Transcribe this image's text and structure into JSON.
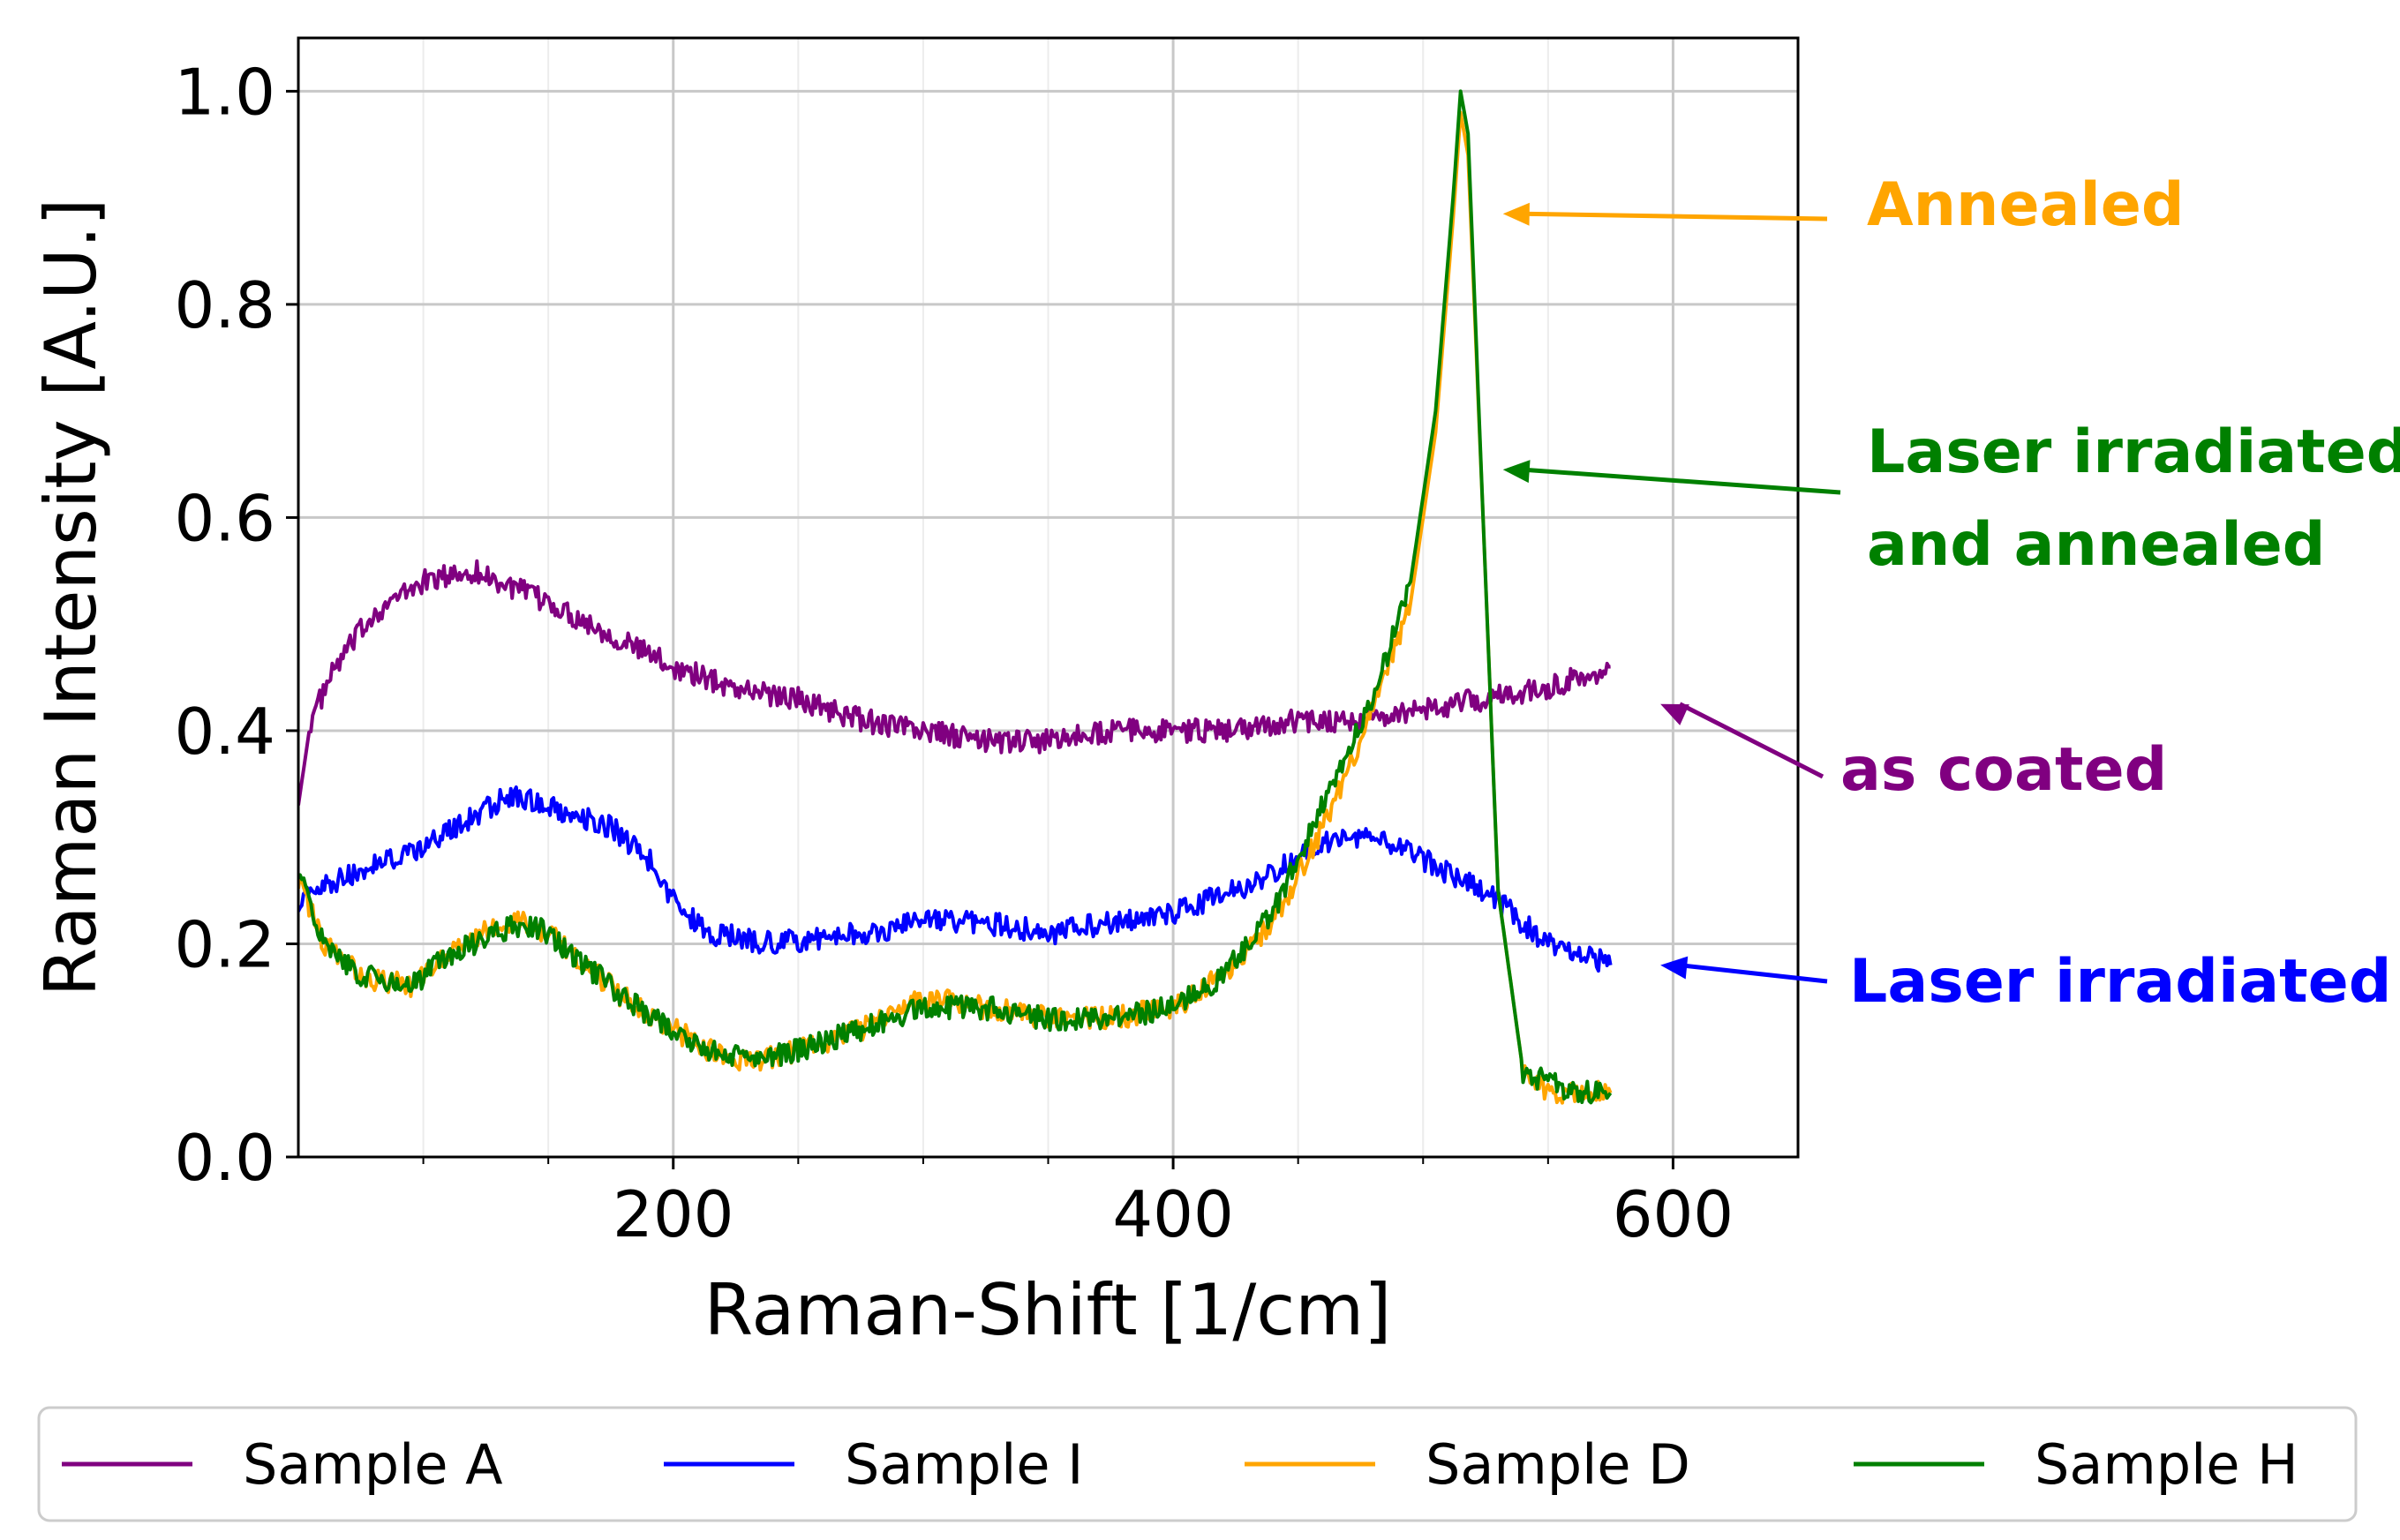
{
  "chart_data": {
    "type": "line",
    "title": "",
    "xlabel": "Raman-Shift [1/cm]",
    "ylabel": "Raman Intensity [A.U.]",
    "xlim": [
      50,
      650
    ],
    "ylim": [
      0.0,
      1.05
    ],
    "grid": true,
    "x_major_ticks": [
      200,
      400,
      600
    ],
    "x_major_tick_labels": [
      "200",
      "400",
      "600"
    ],
    "x_minor_ticks": [
      100,
      150,
      250,
      300,
      350,
      450,
      500,
      550
    ],
    "y_major_ticks": [
      0.0,
      0.2,
      0.4,
      0.6,
      0.8,
      1.0
    ],
    "y_major_tick_labels": [
      "0.0",
      "0.2",
      "0.4",
      "0.6",
      "0.8",
      "1.0"
    ],
    "legend_position": "bottom-outside",
    "series": [
      {
        "name": "Sample A",
        "color": "#800080",
        "x": [
          50,
          55,
          65,
          80,
          100,
          120,
          130,
          150,
          175,
          200,
          225,
          250,
          275,
          300,
          325,
          350,
          375,
          400,
          425,
          450,
          475,
          500,
          525,
          550,
          575
        ],
        "y": [
          0.33,
          0.41,
          0.46,
          0.51,
          0.54,
          0.55,
          0.54,
          0.52,
          0.49,
          0.46,
          0.44,
          0.43,
          0.41,
          0.4,
          0.39,
          0.39,
          0.4,
          0.4,
          0.4,
          0.41,
          0.41,
          0.42,
          0.43,
          0.44,
          0.46
        ]
      },
      {
        "name": "Sample I",
        "color": "#0000ff",
        "x": [
          50,
          75,
          100,
          120,
          135,
          150,
          175,
          190,
          200,
          215,
          240,
          275,
          300,
          325,
          350,
          375,
          400,
          425,
          450,
          465,
          475,
          490,
          500,
          515,
          530,
          550,
          575
        ],
        "y": [
          0.24,
          0.27,
          0.29,
          0.32,
          0.34,
          0.33,
          0.31,
          0.28,
          0.24,
          0.21,
          0.2,
          0.21,
          0.22,
          0.22,
          0.21,
          0.22,
          0.23,
          0.25,
          0.28,
          0.3,
          0.3,
          0.29,
          0.28,
          0.26,
          0.24,
          0.2,
          0.18
        ]
      },
      {
        "name": "Sample D",
        "color": "#ffa500",
        "x": [
          50,
          60,
          75,
          95,
          110,
          130,
          140,
          150,
          165,
          180,
          200,
          215,
          230,
          250,
          275,
          300,
          325,
          350,
          375,
          400,
          420,
          440,
          460,
          480,
          495,
          505,
          512,
          515,
          518,
          524,
          530,
          540,
          550,
          560,
          575
        ],
        "y": [
          0.26,
          0.2,
          0.17,
          0.16,
          0.19,
          0.22,
          0.22,
          0.21,
          0.18,
          0.15,
          0.12,
          0.1,
          0.09,
          0.1,
          0.12,
          0.15,
          0.14,
          0.13,
          0.13,
          0.14,
          0.17,
          0.22,
          0.31,
          0.42,
          0.52,
          0.68,
          0.88,
          0.98,
          0.94,
          0.6,
          0.25,
          0.08,
          0.06,
          0.06,
          0.06
        ]
      },
      {
        "name": "Sample H",
        "color": "#008000",
        "x": [
          50,
          60,
          75,
          95,
          110,
          130,
          140,
          150,
          165,
          180,
          200,
          215,
          230,
          250,
          275,
          300,
          325,
          350,
          375,
          400,
          420,
          440,
          460,
          480,
          495,
          505,
          512,
          515,
          518,
          524,
          530,
          540,
          550,
          560,
          575
        ],
        "y": [
          0.27,
          0.2,
          0.17,
          0.16,
          0.19,
          0.21,
          0.22,
          0.21,
          0.18,
          0.15,
          0.12,
          0.1,
          0.09,
          0.1,
          0.12,
          0.14,
          0.14,
          0.13,
          0.13,
          0.14,
          0.17,
          0.23,
          0.33,
          0.43,
          0.54,
          0.7,
          0.9,
          1.0,
          0.96,
          0.6,
          0.25,
          0.08,
          0.07,
          0.06,
          0.06
        ]
      }
    ],
    "annotations": [
      {
        "lines": [
          "Annealed"
        ],
        "color": "#ffa500",
        "points_to": [
          515,
          0.885
        ]
      },
      {
        "lines": [
          "Laser irradiated",
          "and annealed"
        ],
        "color": "#008000",
        "points_to": [
          515,
          0.645
        ]
      },
      {
        "lines": [
          "as coated"
        ],
        "color": "#800080",
        "points_to": [
          578,
          0.425
        ]
      },
      {
        "lines": [
          "Laser irradiated"
        ],
        "color": "#0000ff",
        "points_to": [
          578,
          0.18
        ]
      }
    ]
  }
}
